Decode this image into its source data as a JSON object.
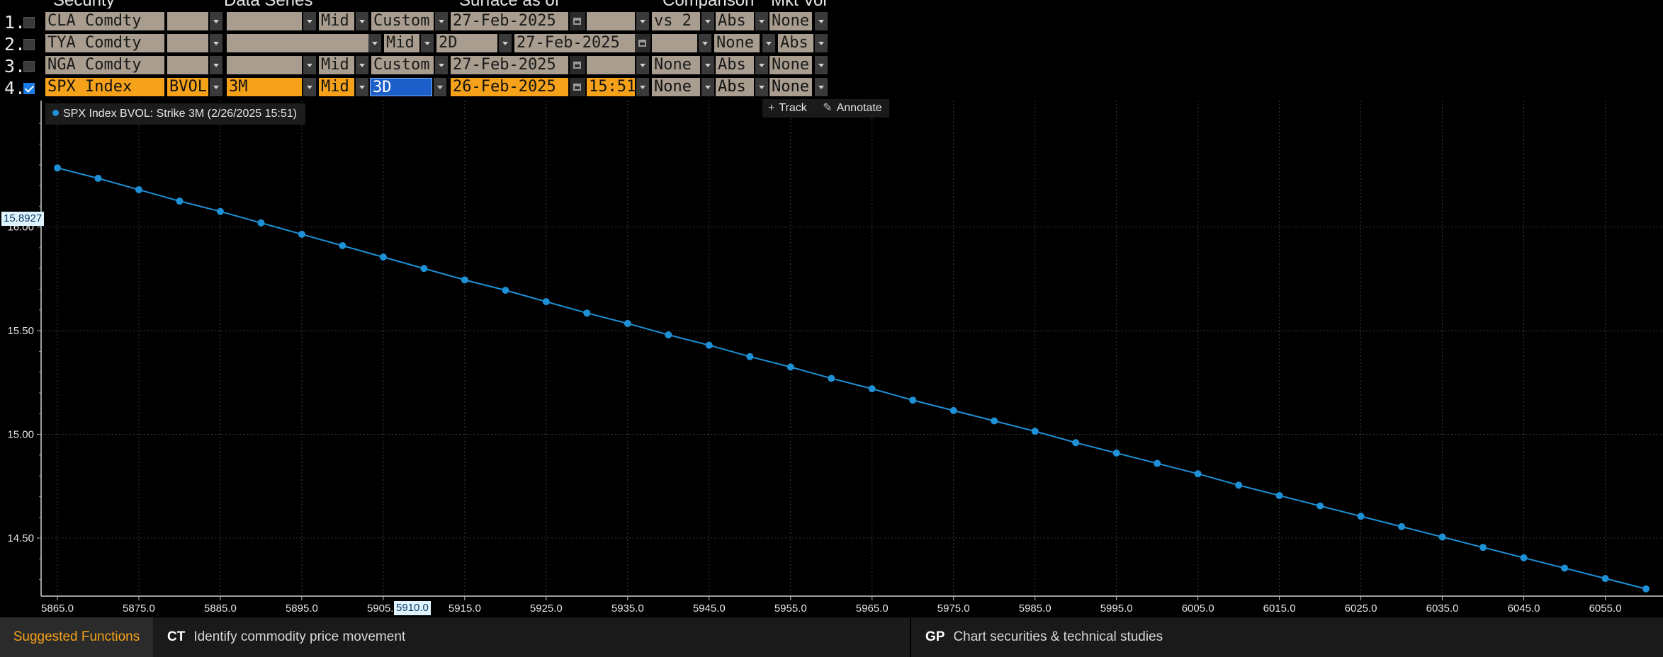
{
  "headers": [
    "Security",
    "Data Series",
    "Surface as of",
    "Comparison",
    "Mkt Vol"
  ],
  "rows": [
    {
      "num": "1.",
      "checked": false,
      "active": false,
      "security": "CLA Comdty",
      "c1": "",
      "c2": "",
      "c3": "Mid",
      "c4": "Custom",
      "c5": "27-Feb-2025",
      "c6": "",
      "c7": "vs 2",
      "c8": "Abs",
      "c9": "None"
    },
    {
      "num": "2.",
      "checked": false,
      "active": false,
      "security": "TYA Comdty",
      "c1": "",
      "c2": "",
      "c3": "Mid",
      "c4": "2D",
      "c5": "27-Feb-2025",
      "c6": "",
      "c7": "None",
      "c8": "Abs"
    },
    {
      "num": "3.",
      "checked": false,
      "active": false,
      "security": "NGA Comdty",
      "c1": "",
      "c2": "",
      "c3": "Mid",
      "c4": "Custom",
      "c5": "27-Feb-2025",
      "c6": "",
      "c7": "None",
      "c8": "Abs",
      "c9": "None"
    },
    {
      "num": "4.",
      "checked": true,
      "active": true,
      "security": "SPX Index",
      "c1": "BVOL",
      "c2": "3M",
      "c3": "Mid",
      "c4": "3D",
      "c5": "26-Feb-2025",
      "c6": "15:51",
      "c7": "None",
      "c8": "Abs",
      "c9": "None"
    }
  ],
  "toolbar": {
    "track": "Track",
    "annotate": "Annotate"
  },
  "cursor": {
    "y_value": "15.8927",
    "x_value": "5910.0"
  },
  "bottom": {
    "label": "Suggested Functions",
    "items": [
      {
        "code": "CT",
        "text": "Identify commodity price movement"
      },
      {
        "code": "GP",
        "text": "Chart securities & technical studies"
      }
    ]
  },
  "colors": {
    "accent": "#f5a21a",
    "line": "#1e90d6",
    "background": "#000000"
  },
  "chart_data": {
    "type": "line",
    "legend": "SPX Index BVOL: Strike 3M (2/26/2025 15:51)",
    "legend_position": "top-left",
    "grid": true,
    "xlim": [
      5863,
      5863.5,
      6060
    ],
    "ylim": [
      14.22,
      16.61
    ],
    "x_ticks": [
      5865,
      5875,
      5885,
      5895,
      5905,
      5915,
      5925,
      5935,
      5945,
      5955,
      5965,
      5975,
      5985,
      5995,
      6005,
      6015,
      6025,
      6035,
      6045,
      6055
    ],
    "x_tick_labels": [
      "5865.0",
      "5875.0",
      "5885.0",
      "5895.0",
      "5905.0",
      "5915.0",
      "5925.0",
      "5935.0",
      "5945.0",
      "5955.0",
      "5965.0",
      "5975.0",
      "5985.0",
      "5995.0",
      "6005.0",
      "6015.0",
      "6025.0",
      "6035.0",
      "6045.0",
      "6055.0"
    ],
    "y_ticks": [
      16.0,
      15.5,
      15.0,
      14.5
    ],
    "y_tick_labels": [
      "16.00",
      "15.50",
      "15.00",
      "14.50"
    ],
    "series": [
      {
        "name": "SPX Index BVOL: Strike 3M (2/26/2025 15:51)",
        "x": [
          5865,
          5870,
          5875,
          5880,
          5885,
          5890,
          5895,
          5900,
          5905,
          5910,
          5915,
          5920,
          5925,
          5930,
          5935,
          5940,
          5945,
          5950,
          5955,
          5960,
          5965,
          5970,
          5975,
          5980,
          5985,
          5990,
          5995,
          6000,
          6005,
          6010,
          6015,
          6020,
          6025,
          6030,
          6035,
          6040,
          6045,
          6050,
          6055,
          6060
        ],
        "y": [
          16.285,
          16.235,
          16.18,
          16.125,
          16.075,
          16.02,
          15.965,
          15.91,
          15.855,
          15.8,
          15.745,
          15.695,
          15.64,
          15.585,
          15.535,
          15.48,
          15.43,
          15.375,
          15.325,
          15.27,
          15.22,
          15.165,
          15.115,
          15.065,
          15.015,
          14.96,
          14.91,
          14.86,
          14.81,
          14.755,
          14.705,
          14.655,
          14.605,
          14.555,
          14.505,
          14.455,
          14.405,
          14.355,
          14.305,
          14.255
        ]
      }
    ]
  }
}
